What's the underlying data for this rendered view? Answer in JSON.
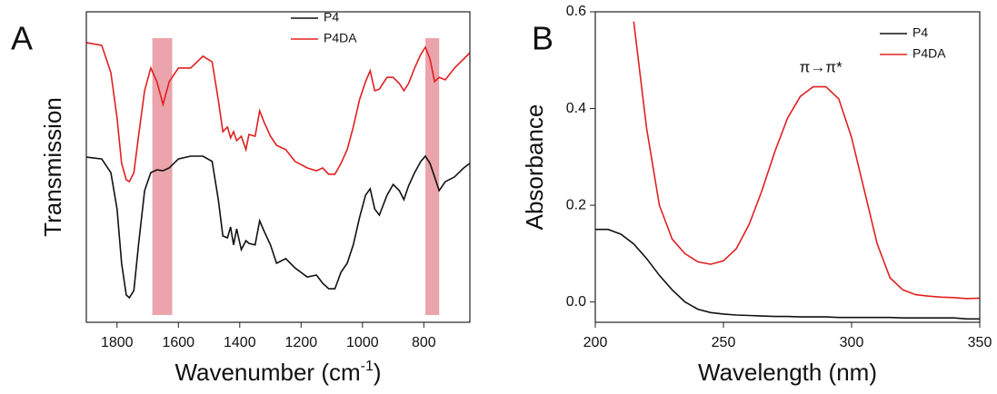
{
  "chart_data": [
    {
      "type": "line",
      "panel_label": "A",
      "x_label_parts": [
        "Wavenumber (cm",
        "-1",
        ")"
      ],
      "y_label": "Transmission",
      "xlim": [
        1900,
        650
      ],
      "ylim": [
        0,
        100
      ],
      "xticks": [
        1800,
        1600,
        1400,
        1200,
        1000,
        800
      ],
      "x": [
        1900,
        1850,
        1820,
        1800,
        1785,
        1770,
        1760,
        1745,
        1730,
        1710,
        1690,
        1670,
        1650,
        1630,
        1600,
        1560,
        1520,
        1490,
        1470,
        1455,
        1440,
        1430,
        1420,
        1410,
        1395,
        1380,
        1370,
        1350,
        1335,
        1320,
        1300,
        1280,
        1250,
        1220,
        1180,
        1150,
        1130,
        1110,
        1090,
        1070,
        1050,
        1030,
        1010,
        990,
        975,
        960,
        945,
        920,
        900,
        880,
        865,
        850,
        830,
        810,
        795,
        780,
        765,
        750,
        730,
        700,
        670,
        650
      ],
      "series": [
        {
          "name": "P4",
          "color": "#111111",
          "values": [
            53.2,
            52.6,
            48.2,
            36.5,
            19.0,
            8.8,
            7.9,
            10.2,
            24.9,
            42.4,
            48.2,
            49.1,
            48.8,
            49.7,
            52.6,
            53.5,
            53.5,
            51.8,
            39.5,
            27.8,
            27.2,
            30.7,
            24.9,
            30.1,
            23.4,
            26.3,
            25.4,
            24.9,
            32.7,
            29.2,
            24.9,
            19.0,
            20.5,
            17.5,
            14.6,
            15.2,
            12.6,
            10.8,
            10.8,
            16.1,
            19.0,
            24.9,
            33.6,
            40.9,
            43.0,
            36.5,
            34.5,
            40.9,
            44.4,
            42.4,
            39.5,
            43.9,
            48.2,
            51.8,
            53.5,
            51.2,
            46.8,
            42.4,
            45.3,
            46.8,
            49.7,
            51.2
          ]
        },
        {
          "name": "P4DA",
          "color": "#e02020",
          "values": [
            90.1,
            89.2,
            80.4,
            65.8,
            51.2,
            45.9,
            45.3,
            48.2,
            59.9,
            74.6,
            81.9,
            77.5,
            70.2,
            77.5,
            81.9,
            81.9,
            85.7,
            83.9,
            71.6,
            61.4,
            62.9,
            59.4,
            61.4,
            58.5,
            59.9,
            55.6,
            60.5,
            59.9,
            68.1,
            64.3,
            59.9,
            57.0,
            55.6,
            51.8,
            49.7,
            48.8,
            49.7,
            47.7,
            47.7,
            51.2,
            55.6,
            62.9,
            71.6,
            77.5,
            81.0,
            74.6,
            75.1,
            78.9,
            78.9,
            76.9,
            74.6,
            76.9,
            81.9,
            86.3,
            88.6,
            84.8,
            77.5,
            78.9,
            78.1,
            81.9,
            84.8,
            86.8
          ]
        }
      ],
      "highlight_bands": [
        [
          1685,
          1620
        ],
        [
          795,
          750
        ]
      ],
      "highlight_color": "#e8949c",
      "legend": "upper-right"
    },
    {
      "type": "line",
      "panel_label": "B",
      "x_label_parts": [
        "Wavelength (nm)"
      ],
      "y_label": "Absorbance",
      "xlim": [
        200,
        350
      ],
      "ylim": [
        -0.042,
        0.6
      ],
      "xticks": [
        200,
        250,
        300,
        350
      ],
      "yticks": [
        {
          "value": 0,
          "label": "0.0"
        },
        0.2,
        0.4,
        0.6
      ],
      "x": [
        200,
        205,
        210,
        215,
        220,
        225,
        230,
        235,
        240,
        245,
        250,
        255,
        260,
        265,
        270,
        275,
        280,
        285,
        290,
        295,
        300,
        305,
        310,
        315,
        320,
        325,
        330,
        335,
        340,
        345,
        350
      ],
      "series": [
        {
          "name": "P4",
          "color": "#111111",
          "values": [
            0.15,
            0.15,
            0.14,
            0.12,
            0.09,
            0.055,
            0.025,
            0.0,
            -0.015,
            -0.022,
            -0.025,
            -0.027,
            -0.028,
            -0.029,
            -0.03,
            -0.03,
            -0.031,
            -0.031,
            -0.031,
            -0.032,
            -0.032,
            -0.032,
            -0.032,
            -0.032,
            -0.033,
            -0.033,
            -0.033,
            -0.033,
            -0.033,
            -0.035,
            -0.035
          ]
        },
        {
          "name": "P4DA",
          "color": "#e02020",
          "values": [
            null,
            null,
            null,
            0.58,
            0.36,
            0.2,
            0.13,
            0.1,
            0.083,
            0.078,
            0.085,
            0.11,
            0.16,
            0.23,
            0.31,
            0.38,
            0.425,
            0.445,
            0.445,
            0.42,
            0.34,
            0.23,
            0.12,
            0.05,
            0.025,
            0.015,
            0.012,
            0.01,
            0.009,
            0.007,
            0.008
          ]
        }
      ],
      "annotation": {
        "text": "π→π*",
        "x": 288,
        "y": 0.484,
        "color": "#d9534f"
      },
      "legend": "upper-right"
    }
  ]
}
